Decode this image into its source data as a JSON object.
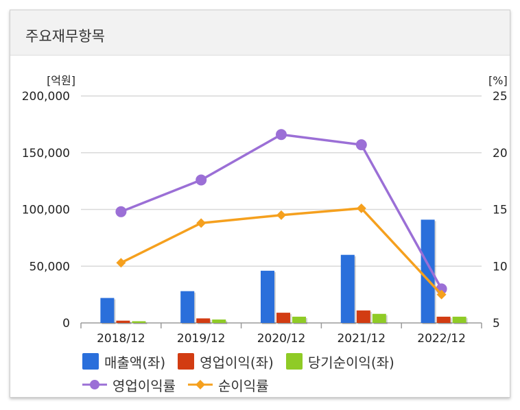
{
  "panel": {
    "title": "주요재무항목"
  },
  "chart_data": {
    "type": "bar+line",
    "categories": [
      "2018/12",
      "2019/12",
      "2020/12",
      "2021/12",
      "2022/12"
    ],
    "left_axis": {
      "unit": "[억원]",
      "min": 0,
      "max": 200000,
      "ticks": [
        0,
        50000,
        100000,
        150000,
        200000
      ],
      "tick_labels": [
        "0",
        "50,000",
        "100,000",
        "150,000",
        "200,000"
      ]
    },
    "right_axis": {
      "unit": "[%]",
      "min": 5,
      "max": 25,
      "ticks": [
        5,
        10,
        15,
        20,
        25
      ],
      "tick_labels": [
        "5",
        "10",
        "15",
        "20",
        "25"
      ]
    },
    "bar_series": [
      {
        "name": "매출액(좌)",
        "color": "#2a6fdb",
        "values": [
          22000,
          28000,
          46000,
          60000,
          91000
        ]
      },
      {
        "name": "영업이익(좌)",
        "color": "#d23c12",
        "values": [
          2000,
          4000,
          9000,
          11000,
          5500
        ]
      },
      {
        "name": "당기순이익(좌)",
        "color": "#8fcb26",
        "values": [
          1500,
          3000,
          5500,
          8000,
          5500
        ]
      }
    ],
    "line_series": [
      {
        "name": "영업이익률",
        "color": "#9b6fd6",
        "marker": "circle",
        "values": [
          14.8,
          17.6,
          21.6,
          20.7,
          8.0
        ]
      },
      {
        "name": "순이익률",
        "color": "#f5a01e",
        "marker": "diamond",
        "values": [
          10.3,
          13.8,
          14.5,
          15.1,
          7.5
        ]
      }
    ],
    "grid": true
  }
}
